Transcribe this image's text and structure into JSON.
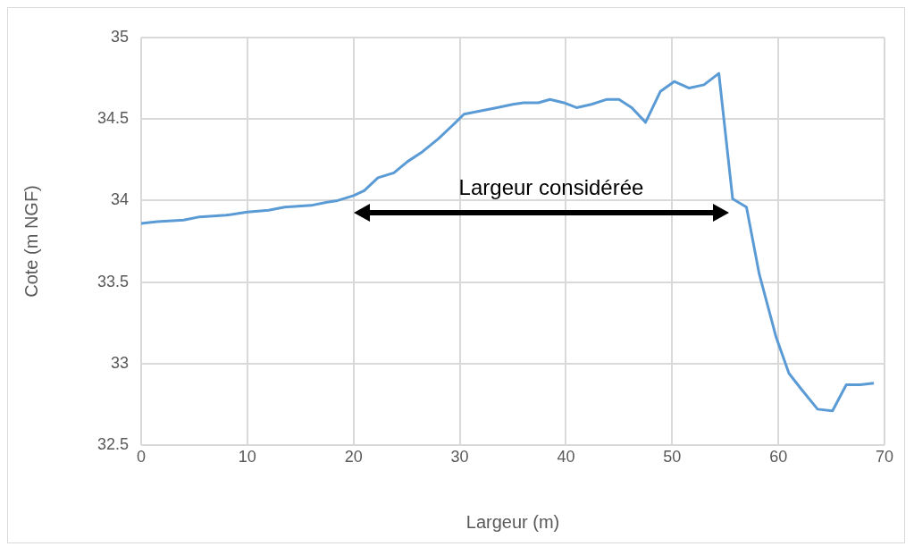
{
  "chart_data": {
    "type": "line",
    "xlabel": "Largeur (m)",
    "ylabel": "Cote (m NGF)",
    "xlim": [
      0,
      70
    ],
    "xticks": [
      0,
      10,
      20,
      30,
      40,
      50,
      60,
      70
    ],
    "ylim": [
      32.5,
      35
    ],
    "yticks": [
      32.5,
      33,
      33.5,
      34,
      34.5,
      35
    ],
    "grid": true,
    "legend": false,
    "marker": "none",
    "annotations": [
      "Largeur considérée"
    ],
    "series": [
      {
        "color": "#5b9bd5",
        "x": [
          0,
          1.5,
          4,
          5.5,
          8,
          10,
          12,
          13.5,
          16,
          17.5,
          18.5,
          20,
          21,
          22.3,
          23.8,
          25.1,
          26.5,
          28,
          29.3,
          30.4,
          32,
          33.5,
          35,
          36,
          37.4,
          38.5,
          39.8,
          41,
          42.4,
          43.8,
          45,
          46.2,
          47.5,
          48.9,
          50.2,
          51.6,
          53,
          54.4,
          55.7,
          57,
          58.2,
          59.8,
          61,
          62.2,
          63.7,
          65.1,
          66.4,
          67.7,
          69
        ],
        "values": [
          33.86,
          33.87,
          33.88,
          33.9,
          33.91,
          33.93,
          33.94,
          33.96,
          33.97,
          33.99,
          34,
          34.03,
          34.06,
          34.14,
          34.17,
          34.24,
          34.3,
          34.38,
          34.46,
          34.53,
          34.55,
          34.57,
          34.59,
          34.6,
          34.6,
          34.62,
          34.6,
          34.57,
          34.59,
          34.62,
          34.62,
          34.57,
          34.48,
          34.67,
          34.73,
          34.69,
          34.71,
          34.78,
          34.01,
          33.96,
          33.55,
          33.16,
          32.94,
          32.84,
          32.72,
          32.71,
          32.87,
          32.87,
          32.88
        ]
      }
    ]
  }
}
